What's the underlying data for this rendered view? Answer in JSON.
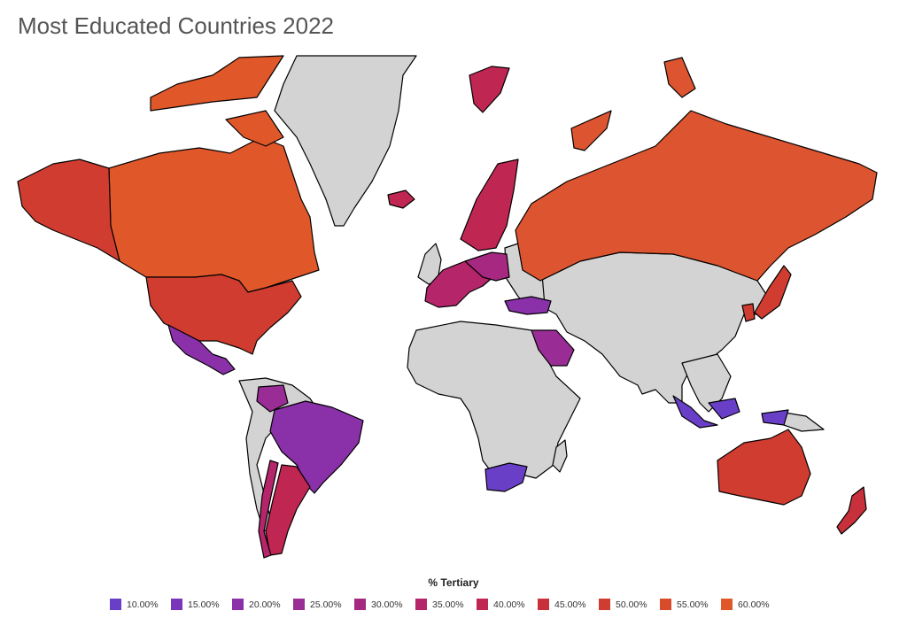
{
  "title": "Most Educated Countries 2022",
  "legend": {
    "title": "% Tertiary",
    "items": [
      {
        "label": "10.00%",
        "value": 10,
        "color": "#6a3fc8"
      },
      {
        "label": "15.00%",
        "value": 15,
        "color": "#7a36b8"
      },
      {
        "label": "20.00%",
        "value": 20,
        "color": "#8a30a8"
      },
      {
        "label": "25.00%",
        "value": 25,
        "color": "#9a2c96"
      },
      {
        "label": "30.00%",
        "value": 30,
        "color": "#a62880"
      },
      {
        "label": "35.00%",
        "value": 35,
        "color": "#b5256a"
      },
      {
        "label": "40.00%",
        "value": 40,
        "color": "#c02652"
      },
      {
        "label": "45.00%",
        "value": 45,
        "color": "#c8313c"
      },
      {
        "label": "50.00%",
        "value": 50,
        "color": "#d03d30"
      },
      {
        "label": "55.00%",
        "value": 55,
        "color": "#d84c2c"
      },
      {
        "label": "60.00%",
        "value": 60,
        "color": "#e0582a"
      }
    ]
  },
  "colors": {
    "no_data": "#d3d3d3",
    "border": "#000000",
    "background": "#ffffff"
  },
  "regions": [
    {
      "name": "canada",
      "value": 60,
      "color": "#e0582a"
    },
    {
      "name": "russia",
      "value": 58,
      "color": "#dd5430"
    },
    {
      "name": "usa",
      "value": 50,
      "color": "#d03d30"
    },
    {
      "name": "alaska",
      "value": 50,
      "color": "#d03d30"
    },
    {
      "name": "australia",
      "value": 50,
      "color": "#d03d30"
    },
    {
      "name": "new-zealand",
      "value": 44,
      "color": "#c8313c"
    },
    {
      "name": "mexico",
      "value": 25,
      "color": "#8a30a8"
    },
    {
      "name": "brazil",
      "value": 22,
      "color": "#8a30a8"
    },
    {
      "name": "argentina",
      "value": 40,
      "color": "#c02652"
    },
    {
      "name": "chile",
      "value": 35,
      "color": "#b5256a"
    },
    {
      "name": "colombia",
      "value": 27,
      "color": "#9a2c96"
    },
    {
      "name": "south-africa",
      "value": 12,
      "color": "#6a3fc8"
    },
    {
      "name": "saudi-arabia",
      "value": 28,
      "color": "#9a2c96"
    },
    {
      "name": "turkey",
      "value": 22,
      "color": "#8a30a8"
    },
    {
      "name": "indonesia",
      "value": 12,
      "color": "#6a3fc8"
    },
    {
      "name": "iceland",
      "value": 40,
      "color": "#c02652"
    },
    {
      "name": "svalbard",
      "value": 40,
      "color": "#c02652"
    },
    {
      "name": "scandinavia",
      "value": 40,
      "color": "#c02652"
    },
    {
      "name": "western-europe",
      "value": 38,
      "color": "#b5256a"
    },
    {
      "name": "central-europe",
      "value": 30,
      "color": "#a62880"
    },
    {
      "name": "japan",
      "value": 52,
      "color": "#d03d30"
    },
    {
      "name": "korea",
      "value": 50,
      "color": "#d03d30"
    }
  ]
}
